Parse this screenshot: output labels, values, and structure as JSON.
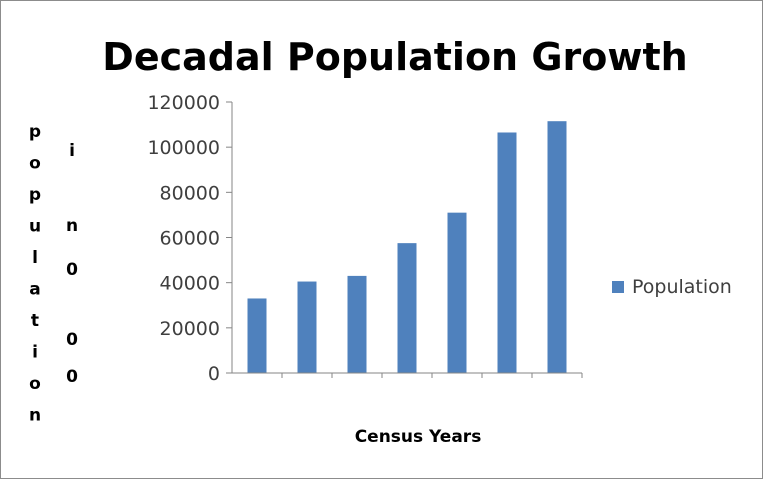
{
  "chart_data": {
    "type": "bar",
    "title": "Decadal Population Growth",
    "xlabel": "Census Years",
    "ylabel": "population in 000",
    "categories": [
      "",
      "",
      "",
      "",
      "",
      "",
      ""
    ],
    "series": [
      {
        "name": "Population",
        "values": [
          33000,
          40500,
          43000,
          57500,
          71000,
          106500,
          111500
        ]
      }
    ],
    "ylim": [
      0,
      120000
    ],
    "yticks": [
      0,
      20000,
      40000,
      60000,
      80000,
      100000,
      120000
    ],
    "grid": false,
    "legend_position": "right",
    "colors": {
      "bar": "#4f81bd",
      "axis": "#868686",
      "text": "#3f3f3f"
    }
  }
}
